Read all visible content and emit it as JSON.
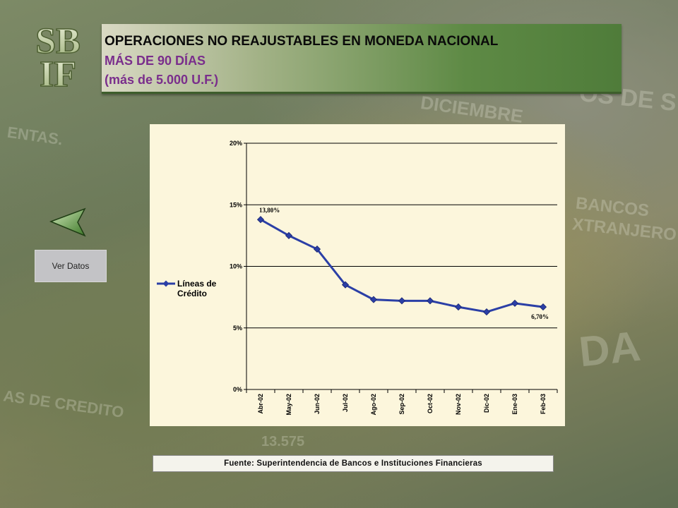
{
  "header": {
    "title_line1": "OPERACIONES NO REAJUSTABLES EN MONEDA NACIONAL",
    "title_line2": "MÁS DE 90 DÍAS",
    "title_line3": "(más de 5.000 U.F.)"
  },
  "logo": {
    "text": "SBIF",
    "line1": "SB",
    "line2": "IF"
  },
  "nav": {
    "ver_datos_label": "Ver Datos"
  },
  "footer": {
    "source": "Fuente:  Superintendencia  de Bancos e Instituciones Financieras"
  },
  "colors": {
    "series": "#2b3fa6",
    "accent_purple": "#7a2e8c",
    "panel_bg": "#fcf6dc"
  },
  "chart_data": {
    "type": "line",
    "categories": [
      "Abr-02",
      "May-02",
      "Jun-02",
      "Jul-02",
      "Ago-02",
      "Sep-02",
      "Oct-02",
      "Nov-02",
      "Dic-02",
      "Ene-03",
      "Feb-03"
    ],
    "series": [
      {
        "name": "Líneas de Crédito",
        "values": [
          13.8,
          12.5,
          11.4,
          8.5,
          7.3,
          7.2,
          7.2,
          6.7,
          6.3,
          7.0,
          6.7
        ]
      }
    ],
    "legend_label": "Líneas de Crédito",
    "ylim": [
      0,
      20
    ],
    "yticks": [
      0,
      5,
      10,
      15,
      20
    ],
    "ytick_labels": [
      "0%",
      "5%",
      "10%",
      "15%",
      "20%"
    ],
    "grid": true,
    "legend_position": "left",
    "annotations": [
      {
        "category": "Abr-02",
        "text": "13,80%"
      },
      {
        "category": "Feb-03",
        "text": "6,70%"
      }
    ]
  }
}
